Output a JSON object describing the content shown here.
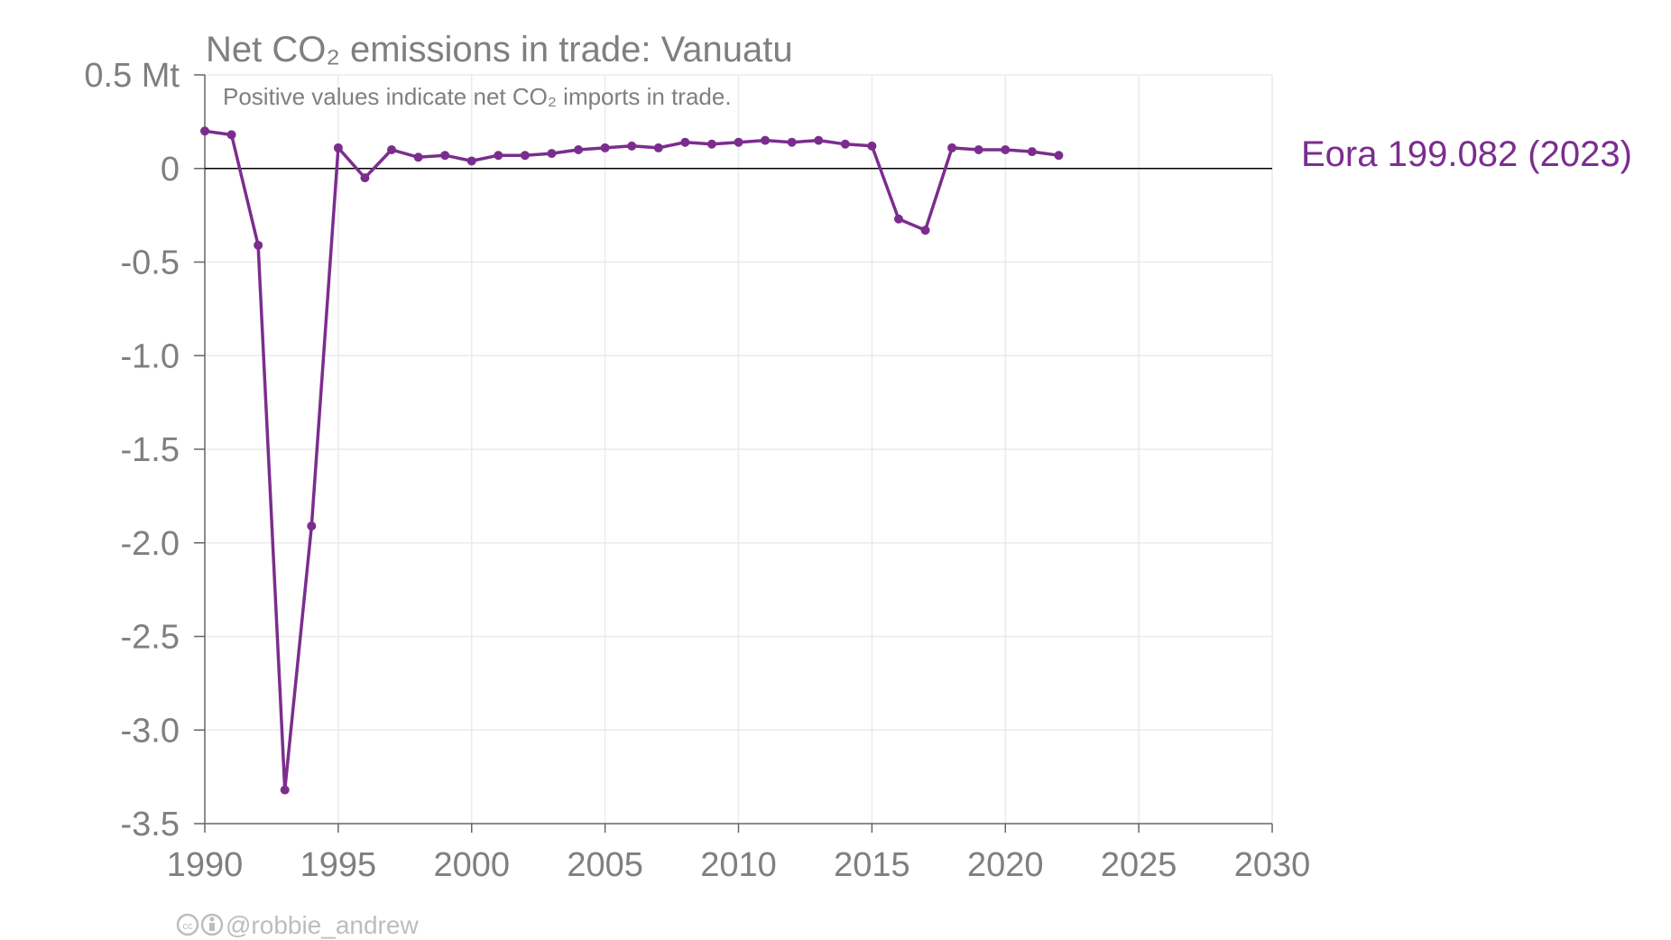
{
  "chart_data": {
    "type": "line",
    "title": "Net CO₂ emissions in trade: Vanuatu",
    "subtitle": "Positive values indicate net CO₂ imports in trade.",
    "xlim": [
      1990,
      2030
    ],
    "ylim": [
      -3.5,
      0.5
    ],
    "x_ticks": [
      1990,
      1995,
      2000,
      2005,
      2010,
      2015,
      2020,
      2025,
      2030
    ],
    "y_ticks": [
      {
        "value": 0.5,
        "label": "0.5 Mt"
      },
      {
        "value": 0,
        "label": "0"
      },
      {
        "value": -0.5,
        "label": "-0.5"
      },
      {
        "value": -1.0,
        "label": "-1.0"
      },
      {
        "value": -1.5,
        "label": "-1.5"
      },
      {
        "value": -2.0,
        "label": "-2.0"
      },
      {
        "value": -2.5,
        "label": "-2.5"
      },
      {
        "value": -3.0,
        "label": "-3.0"
      },
      {
        "value": -3.5,
        "label": "-3.5"
      }
    ],
    "grid": true,
    "series": [
      {
        "name": "Eora 199.082 (2023)",
        "color": "#7b2d8e",
        "x": [
          1990,
          1991,
          1992,
          1993,
          1994,
          1995,
          1996,
          1997,
          1998,
          1999,
          2000,
          2001,
          2002,
          2003,
          2004,
          2005,
          2006,
          2007,
          2008,
          2009,
          2010,
          2011,
          2012,
          2013,
          2014,
          2015,
          2016,
          2017,
          2018,
          2019,
          2020,
          2021,
          2022
        ],
        "y": [
          0.2,
          0.18,
          -0.41,
          -3.32,
          -1.91,
          0.11,
          -0.05,
          0.1,
          0.06,
          0.07,
          0.04,
          0.07,
          0.07,
          0.08,
          0.1,
          0.11,
          0.12,
          0.11,
          0.14,
          0.13,
          0.14,
          0.15,
          0.14,
          0.15,
          0.13,
          0.12,
          -0.27,
          -0.33,
          0.11,
          0.1,
          0.1,
          0.09,
          0.07
        ]
      }
    ]
  },
  "credit": {
    "cc_icon": "cc-icon",
    "by_icon": "by-icon",
    "handle": "@robbie_andrew"
  }
}
